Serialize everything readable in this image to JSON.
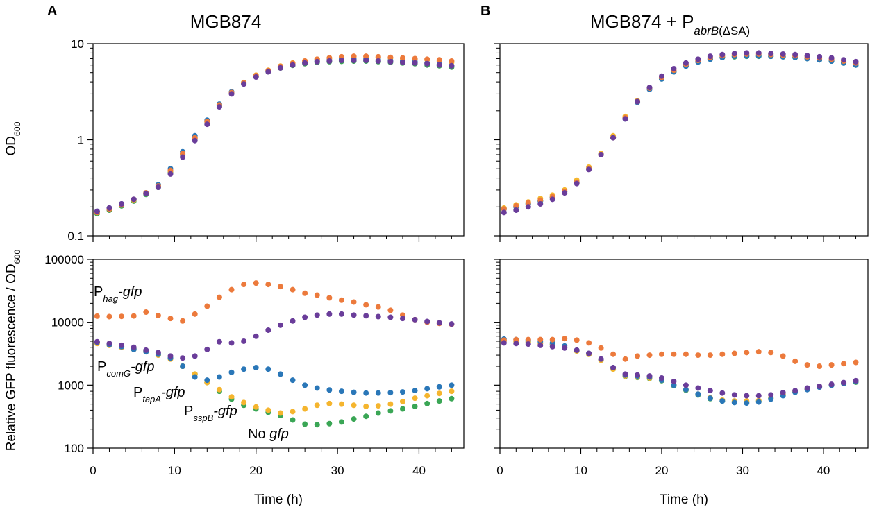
{
  "chart_data": [
    {
      "type": "scatter",
      "panel_label": "A",
      "title_parts": [
        {
          "text": "MGB874"
        }
      ],
      "ylabel_parts": [
        {
          "text": "OD"
        },
        {
          "text": "600",
          "style": "sub"
        }
      ],
      "x": [
        0.5,
        2,
        3.5,
        5,
        6.5,
        8,
        9.5,
        11,
        12.5,
        14,
        15.5,
        17,
        18.5,
        20,
        21.5,
        23,
        24.5,
        26,
        27.5,
        29,
        30.5,
        32,
        33.5,
        35,
        36.5,
        38,
        39.5,
        41,
        42.5,
        44
      ],
      "series": [
        {
          "color": "#3aa655",
          "values": [
            0.17,
            0.185,
            0.205,
            0.23,
            0.27,
            0.32,
            0.46,
            0.7,
            1.02,
            1.5,
            2.25,
            3.05,
            3.85,
            4.55,
            5.1,
            5.6,
            5.95,
            6.2,
            6.4,
            6.5,
            6.55,
            6.6,
            6.6,
            6.5,
            6.4,
            6.3,
            6.2,
            6.0,
            5.9,
            5.7
          ]
        },
        {
          "color": "#f5b52e",
          "values": [
            0.175,
            0.19,
            0.21,
            0.235,
            0.275,
            0.33,
            0.47,
            0.71,
            1.04,
            1.55,
            2.3,
            3.1,
            3.95,
            4.7,
            5.3,
            5.85,
            6.3,
            6.6,
            6.9,
            7.1,
            7.2,
            7.3,
            7.3,
            7.2,
            7.1,
            7.0,
            6.9,
            6.8,
            6.6,
            6.4
          ]
        },
        {
          "color": "#2a77b8",
          "values": [
            0.18,
            0.195,
            0.215,
            0.24,
            0.28,
            0.34,
            0.5,
            0.75,
            1.1,
            1.6,
            2.35,
            3.15,
            3.9,
            4.6,
            5.2,
            5.7,
            6.1,
            6.4,
            6.6,
            6.8,
            6.9,
            6.9,
            6.9,
            6.8,
            6.7,
            6.6,
            6.5,
            6.3,
            6.1,
            5.9
          ]
        },
        {
          "color": "#ec7a3c",
          "values": [
            0.175,
            0.19,
            0.21,
            0.24,
            0.28,
            0.33,
            0.48,
            0.72,
            1.05,
            1.55,
            2.3,
            3.1,
            3.9,
            4.65,
            5.25,
            5.8,
            6.25,
            6.6,
            6.9,
            7.1,
            7.3,
            7.4,
            7.4,
            7.3,
            7.2,
            7.1,
            7.0,
            6.9,
            6.8,
            6.6
          ]
        },
        {
          "color": "#6a3d9a",
          "values": [
            0.18,
            0.195,
            0.215,
            0.24,
            0.275,
            0.32,
            0.44,
            0.66,
            0.98,
            1.45,
            2.2,
            3.0,
            3.8,
            4.5,
            5.1,
            5.6,
            6.0,
            6.3,
            6.5,
            6.6,
            6.7,
            6.7,
            6.7,
            6.6,
            6.5,
            6.4,
            6.3,
            6.2,
            6.0,
            5.9
          ]
        }
      ],
      "xlim": [
        0,
        45.5
      ],
      "xticks": [
        0,
        10,
        20,
        30,
        40
      ],
      "x_tick_labels": false,
      "ylim": [
        0.1,
        10
      ],
      "yticks": [
        0.1,
        1,
        10
      ],
      "y_tick_labels": true,
      "log_y": true,
      "minor_ticks": true
    },
    {
      "type": "scatter",
      "panel_label": "B",
      "title_parts": [
        {
          "text": "MGB874 + P"
        },
        {
          "text": "abrB",
          "style": "italic-sub"
        },
        {
          "text": "(ΔSA)",
          "style": "sub"
        }
      ],
      "x": [
        0.5,
        2,
        3.5,
        5,
        6.5,
        8,
        9.5,
        11,
        12.5,
        14,
        15.5,
        17,
        18.5,
        20,
        21.5,
        23,
        24.5,
        26,
        27.5,
        29,
        30.5,
        32,
        33.5,
        35,
        36.5,
        38,
        39.5,
        41,
        42.5,
        44
      ],
      "series": [
        {
          "color": "#3aa655",
          "values": [
            0.19,
            0.2,
            0.215,
            0.23,
            0.25,
            0.29,
            0.36,
            0.5,
            0.7,
            1.05,
            1.7,
            2.5,
            3.4,
            4.3,
            5.1,
            5.9,
            6.5,
            6.9,
            7.2,
            7.3,
            7.4,
            7.4,
            7.4,
            7.3,
            7.2,
            7.0,
            6.8,
            6.6,
            6.3,
            6.0
          ]
        },
        {
          "color": "#f5b52e",
          "values": [
            0.195,
            0.21,
            0.225,
            0.245,
            0.265,
            0.3,
            0.38,
            0.52,
            0.72,
            1.1,
            1.75,
            2.55,
            3.45,
            4.4,
            5.2,
            6.0,
            6.6,
            7.0,
            7.3,
            7.5,
            7.6,
            7.6,
            7.6,
            7.5,
            7.4,
            7.2,
            7.0,
            6.8,
            6.5,
            6.2
          ]
        },
        {
          "color": "#2a77b8",
          "values": [
            0.19,
            0.2,
            0.215,
            0.23,
            0.25,
            0.29,
            0.36,
            0.5,
            0.7,
            1.05,
            1.65,
            2.45,
            3.35,
            4.3,
            5.1,
            5.85,
            6.45,
            6.9,
            7.2,
            7.4,
            7.45,
            7.45,
            7.4,
            7.3,
            7.2,
            7.0,
            6.8,
            6.6,
            6.3,
            6.0
          ]
        },
        {
          "color": "#ec7a3c",
          "values": [
            0.19,
            0.205,
            0.22,
            0.235,
            0.255,
            0.29,
            0.36,
            0.5,
            0.7,
            1.05,
            1.7,
            2.5,
            3.45,
            4.45,
            5.3,
            6.1,
            6.7,
            7.2,
            7.5,
            7.7,
            7.8,
            7.8,
            7.7,
            7.6,
            7.5,
            7.3,
            7.1,
            6.9,
            6.6,
            6.3
          ]
        },
        {
          "color": "#6a3d9a",
          "values": [
            0.175,
            0.185,
            0.2,
            0.215,
            0.24,
            0.28,
            0.35,
            0.49,
            0.7,
            1.05,
            1.65,
            2.5,
            3.5,
            4.6,
            5.5,
            6.3,
            6.9,
            7.4,
            7.7,
            7.9,
            8.0,
            8.0,
            7.9,
            7.8,
            7.7,
            7.5,
            7.3,
            7.1,
            6.8,
            6.5
          ]
        }
      ],
      "xlim": [
        0,
        45.5
      ],
      "xticks": [
        0,
        10,
        20,
        30,
        40
      ],
      "x_tick_labels": false,
      "ylim": [
        0.1,
        10
      ],
      "yticks": [
        0.1,
        1,
        10
      ],
      "y_tick_labels": false,
      "log_y": true,
      "minor_ticks": true
    },
    {
      "type": "scatter",
      "ylabel_parts": [
        {
          "text": "Relative GFP fluorescence / OD"
        },
        {
          "text": "600",
          "style": "sub"
        }
      ],
      "xlabel": "Time (h)",
      "x": [
        0.5,
        2,
        3.5,
        5,
        6.5,
        8,
        9.5,
        11,
        12.5,
        14,
        15.5,
        17,
        18.5,
        20,
        21.5,
        23,
        24.5,
        26,
        27.5,
        29,
        30.5,
        32,
        33.5,
        35,
        36.5,
        38,
        39.5,
        41,
        42.5,
        44
      ],
      "series": [
        {
          "color": "#3aa655",
          "label": [
            {
              "text": "No "
            },
            {
              "text": "gfp",
              "style": "italic"
            }
          ],
          "values": [
            4700,
            4400,
            4100,
            3800,
            3500,
            3100,
            2700,
            2000,
            1500,
            1100,
            800,
            600,
            480,
            420,
            370,
            330,
            280,
            240,
            235,
            245,
            260,
            290,
            320,
            360,
            390,
            420,
            460,
            510,
            560,
            610
          ]
        },
        {
          "color": "#f5b52e",
          "label": [
            {
              "text": "P"
            },
            {
              "text": "sspB",
              "style": "italic-sub"
            },
            {
              "text": "-gfp",
              "style": "italic"
            }
          ],
          "values": [
            4600,
            4300,
            4000,
            3700,
            3400,
            3000,
            2600,
            2000,
            1500,
            1100,
            850,
            650,
            530,
            450,
            400,
            360,
            380,
            420,
            480,
            510,
            500,
            480,
            460,
            470,
            500,
            550,
            620,
            680,
            740,
            800
          ]
        },
        {
          "color": "#2a77b8",
          "label": [
            {
              "text": "P"
            },
            {
              "text": "tapA",
              "style": "italic-sub"
            },
            {
              "text": "-gfp",
              "style": "italic"
            }
          ],
          "values": [
            4800,
            4400,
            4100,
            3700,
            3400,
            3100,
            2700,
            2000,
            1350,
            1200,
            1350,
            1600,
            1800,
            1900,
            1800,
            1500,
            1200,
            1000,
            900,
            840,
            800,
            770,
            750,
            750,
            760,
            780,
            820,
            880,
            940,
            1000
          ]
        },
        {
          "color": "#ec7a3c",
          "label": [
            {
              "text": "P"
            },
            {
              "text": "hag",
              "style": "italic-sub"
            },
            {
              "text": "-gfp",
              "style": "italic"
            }
          ],
          "values": [
            12500,
            12300,
            12400,
            12600,
            14500,
            12800,
            11500,
            10500,
            13500,
            18000,
            25000,
            33000,
            40000,
            42000,
            40000,
            37000,
            33000,
            29000,
            27000,
            24500,
            22500,
            21000,
            19000,
            17500,
            15500,
            13000,
            11000,
            10000,
            9600,
            9300
          ]
        },
        {
          "color": "#6a3d9a",
          "label": [
            {
              "text": "P"
            },
            {
              "text": "comG",
              "style": "italic-sub"
            },
            {
              "text": "-gfp",
              "style": "italic"
            }
          ],
          "values": [
            4900,
            4600,
            4300,
            4000,
            3600,
            3300,
            2900,
            2700,
            2900,
            3700,
            4900,
            4700,
            5000,
            6000,
            7500,
            9000,
            10500,
            12000,
            13000,
            13500,
            13500,
            13000,
            12700,
            12300,
            12000,
            11500,
            11000,
            10300,
            9800,
            9400
          ]
        }
      ],
      "xlim": [
        0,
        45.5
      ],
      "xticks": [
        0,
        10,
        20,
        30,
        40
      ],
      "x_tick_labels": true,
      "ylim": [
        100,
        100000
      ],
      "yticks": [
        100,
        1000,
        10000,
        100000
      ],
      "y_tick_labels": true,
      "log_y": true,
      "minor_ticks": true
    },
    {
      "type": "scatter",
      "xlabel": "Time (h)",
      "x": [
        0.5,
        2,
        3.5,
        5,
        6.5,
        8,
        9.5,
        11,
        12.5,
        14,
        15.5,
        17,
        18.5,
        20,
        21.5,
        23,
        24.5,
        26,
        27.5,
        29,
        30.5,
        32,
        33.5,
        35,
        36.5,
        38,
        39.5,
        41,
        42.5,
        44
      ],
      "series": [
        {
          "color": "#3aa655",
          "values": [
            5100,
            5000,
            4900,
            4700,
            4500,
            4000,
            3500,
            3100,
            2500,
            1800,
            1380,
            1330,
            1280,
            1180,
            980,
            830,
            700,
            610,
            560,
            540,
            540,
            560,
            620,
            700,
            780,
            860,
            940,
            1000,
            1060,
            1120
          ]
        },
        {
          "color": "#f5b52e",
          "values": [
            5000,
            4900,
            4800,
            4600,
            4400,
            4000,
            3500,
            3100,
            2500,
            1800,
            1400,
            1350,
            1300,
            1200,
            1000,
            850,
            720,
            630,
            580,
            560,
            560,
            570,
            630,
            710,
            790,
            870,
            950,
            1020,
            1090,
            1160
          ]
        },
        {
          "color": "#2a77b8",
          "values": [
            5400,
            5300,
            5200,
            5000,
            4700,
            4200,
            3600,
            3200,
            2600,
            1900,
            1450,
            1400,
            1350,
            1200,
            1000,
            850,
            720,
            620,
            560,
            530,
            520,
            540,
            600,
            680,
            770,
            850,
            930,
            1000,
            1070,
            1150
          ]
        },
        {
          "color": "#ec7a3c",
          "values": [
            5200,
            5300,
            5300,
            5300,
            5300,
            5500,
            5200,
            4700,
            3900,
            3100,
            2600,
            2900,
            3000,
            3100,
            3100,
            3100,
            3000,
            3000,
            3100,
            3200,
            3300,
            3400,
            3300,
            2900,
            2400,
            2100,
            2000,
            2100,
            2200,
            2300
          ]
        },
        {
          "color": "#6a3d9a",
          "values": [
            4700,
            4600,
            4500,
            4300,
            4100,
            3900,
            3600,
            3200,
            2600,
            1900,
            1500,
            1450,
            1400,
            1300,
            1150,
            1000,
            900,
            820,
            750,
            700,
            680,
            680,
            700,
            760,
            820,
            900,
            960,
            1030,
            1100,
            1180
          ]
        }
      ],
      "xlim": [
        0,
        45.5
      ],
      "xticks": [
        0,
        10,
        20,
        30,
        40
      ],
      "x_tick_labels": true,
      "ylim": [
        100,
        100000
      ],
      "yticks": [
        100,
        1000,
        10000,
        100000
      ],
      "y_tick_labels": false,
      "log_y": true,
      "minor_ticks": true
    }
  ]
}
